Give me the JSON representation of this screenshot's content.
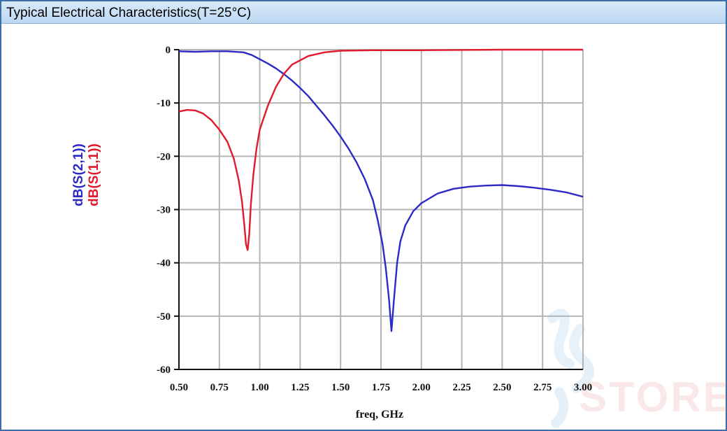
{
  "header": {
    "title": "Typical Electrical Characteristics(T=25°C)"
  },
  "watermark": {
    "text": "STORE"
  },
  "colors": {
    "s21": "#2d29c6",
    "s11": "#e01b2e",
    "grid": "#b4b4b4",
    "header": "#c8def5"
  },
  "chart_data": {
    "type": "line",
    "xlabel": "freq, GHz",
    "xlim": [
      0.5,
      3.0
    ],
    "ylim": [
      -60,
      0
    ],
    "xticks": [
      "0.50",
      "0.75",
      "1.00",
      "1.25",
      "1.50",
      "1.75",
      "2.00",
      "2.25",
      "2.50",
      "2.75",
      "3.00"
    ],
    "yticks": [
      "0",
      "-10",
      "-20",
      "-30",
      "-40",
      "-50",
      "-60"
    ],
    "grid": true,
    "series": [
      {
        "name": "dB(S(2,1))",
        "color": "#2d29c6",
        "points": [
          [
            0.5,
            -0.3
          ],
          [
            0.6,
            -0.4
          ],
          [
            0.7,
            -0.3
          ],
          [
            0.8,
            -0.3
          ],
          [
            0.9,
            -0.5
          ],
          [
            0.95,
            -1.0
          ],
          [
            1.0,
            -1.8
          ],
          [
            1.05,
            -2.6
          ],
          [
            1.1,
            -3.5
          ],
          [
            1.15,
            -4.6
          ],
          [
            1.2,
            -5.8
          ],
          [
            1.25,
            -7.2
          ],
          [
            1.3,
            -8.7
          ],
          [
            1.35,
            -10.5
          ],
          [
            1.4,
            -12.3
          ],
          [
            1.45,
            -14.2
          ],
          [
            1.5,
            -16.3
          ],
          [
            1.55,
            -18.6
          ],
          [
            1.6,
            -21.2
          ],
          [
            1.65,
            -24.3
          ],
          [
            1.7,
            -28.2
          ],
          [
            1.73,
            -32.0
          ],
          [
            1.76,
            -36.5
          ],
          [
            1.78,
            -41.0
          ],
          [
            1.8,
            -47.0
          ],
          [
            1.815,
            -52.8
          ],
          [
            1.83,
            -47.0
          ],
          [
            1.85,
            -40.0
          ],
          [
            1.87,
            -36.0
          ],
          [
            1.9,
            -33.0
          ],
          [
            1.95,
            -30.3
          ],
          [
            2.0,
            -28.8
          ],
          [
            2.1,
            -27.0
          ],
          [
            2.2,
            -26.1
          ],
          [
            2.3,
            -25.7
          ],
          [
            2.4,
            -25.5
          ],
          [
            2.5,
            -25.4
          ],
          [
            2.6,
            -25.6
          ],
          [
            2.7,
            -25.9
          ],
          [
            2.8,
            -26.3
          ],
          [
            2.9,
            -26.8
          ],
          [
            3.0,
            -27.6
          ]
        ]
      },
      {
        "name": "dB(S(1,1))",
        "color": "#e01b2e",
        "points": [
          [
            0.5,
            -11.6
          ],
          [
            0.55,
            -11.3
          ],
          [
            0.6,
            -11.4
          ],
          [
            0.65,
            -12.0
          ],
          [
            0.7,
            -13.2
          ],
          [
            0.75,
            -15.0
          ],
          [
            0.8,
            -17.3
          ],
          [
            0.84,
            -20.5
          ],
          [
            0.87,
            -24.5
          ],
          [
            0.89,
            -28.5
          ],
          [
            0.905,
            -33.0
          ],
          [
            0.915,
            -36.5
          ],
          [
            0.925,
            -37.6
          ],
          [
            0.935,
            -34.5
          ],
          [
            0.945,
            -29.0
          ],
          [
            0.96,
            -23.5
          ],
          [
            0.98,
            -18.5
          ],
          [
            1.0,
            -15.0
          ],
          [
            1.05,
            -10.5
          ],
          [
            1.1,
            -7.0
          ],
          [
            1.15,
            -4.5
          ],
          [
            1.2,
            -2.8
          ],
          [
            1.3,
            -1.2
          ],
          [
            1.4,
            -0.5
          ],
          [
            1.5,
            -0.2
          ],
          [
            1.7,
            -0.1
          ],
          [
            2.0,
            -0.1
          ],
          [
            2.5,
            0.0
          ],
          [
            3.0,
            0.0
          ]
        ]
      }
    ]
  }
}
